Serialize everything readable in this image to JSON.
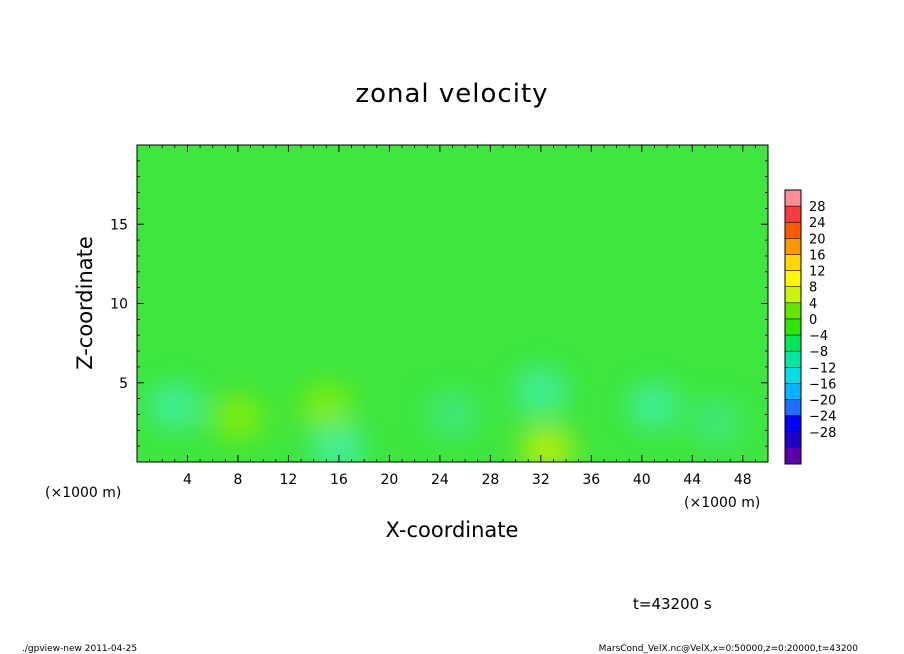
{
  "chart_data": {
    "type": "heatmap",
    "title": "zonal velocity",
    "xlabel": "X-coordinate",
    "ylabel": "Z-coordinate",
    "x_unit": "(×1000 m)",
    "x_unit_secondary": "(×1000 m)",
    "xlim": [
      0,
      50
    ],
    "ylim": [
      0,
      20
    ],
    "xticks": [
      4,
      8,
      12,
      16,
      20,
      24,
      28,
      32,
      36,
      40,
      44,
      48
    ],
    "yticks": [
      5,
      10,
      15
    ],
    "colorbar": {
      "levels": [
        28,
        24,
        20,
        16,
        12,
        8,
        4,
        0,
        -4,
        -8,
        -12,
        -16,
        -20,
        -24,
        -28
      ],
      "labels": [
        "28",
        "24",
        "20",
        "16",
        "12",
        "8",
        "4",
        "0",
        "−4",
        "−8",
        "−12",
        "−16",
        "−20",
        "−24",
        "−28"
      ],
      "colors": [
        "#ff8c96",
        "#ff3c3c",
        "#ff5a00",
        "#ff9600",
        "#ffd700",
        "#fff700",
        "#c8f500",
        "#64e600",
        "#2ee600",
        "#00e65a",
        "#00e6a0",
        "#00dce6",
        "#00b4ff",
        "#1e6eff",
        "#0000ff",
        "#1e00c8",
        "#5a00aa"
      ]
    },
    "field_notes": "Nearly uniform field around -2 m/s across the domain, slightly stronger negative values (about -6 m/s) near x=30-35 km and 0-6 km height, weak positive values (about +2 to +4 m/s) near the surface around x=32 km and x=8 km.",
    "anomalies": [
      {
        "x": 3,
        "z": 3.5,
        "value": -6
      },
      {
        "x": 8,
        "z": 2.8,
        "value": 2
      },
      {
        "x": 15,
        "z": 3.5,
        "value": 2
      },
      {
        "x": 16,
        "z": 0.8,
        "value": -6
      },
      {
        "x": 25,
        "z": 3,
        "value": -5
      },
      {
        "x": 32,
        "z": 4.5,
        "value": -7
      },
      {
        "x": 32.5,
        "z": 0.8,
        "value": 4
      },
      {
        "x": 41,
        "z": 3.5,
        "value": -6
      },
      {
        "x": 46,
        "z": 2.5,
        "value": -5
      }
    ]
  },
  "annotations": {
    "time": "t=43200 s",
    "footer_left": "./gpview-new   2011-04-25",
    "footer_right": "MarsCond_VelX.nc@VelX,x=0:50000,z=0:20000,t=43200"
  }
}
